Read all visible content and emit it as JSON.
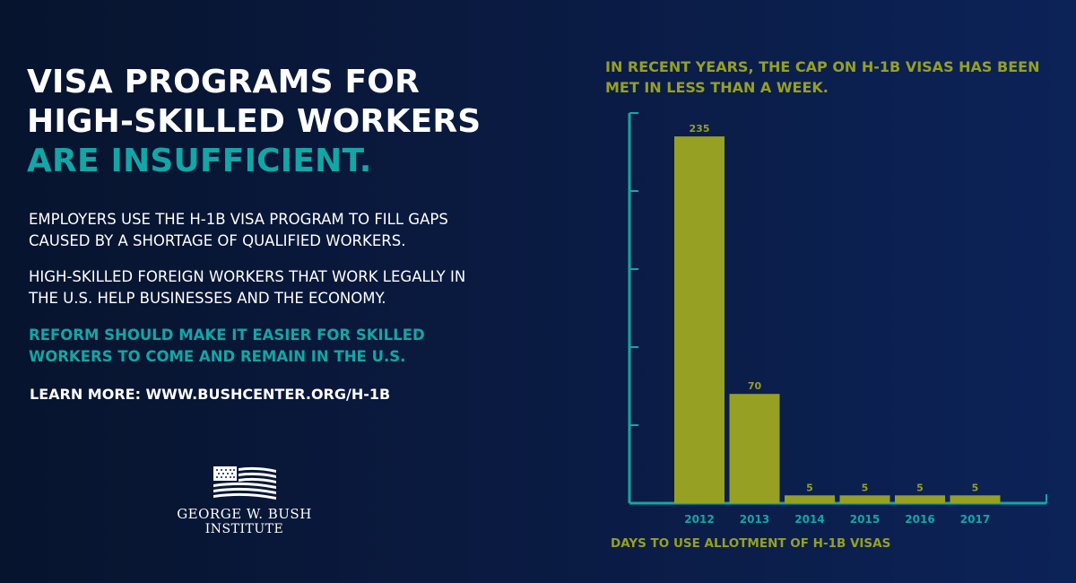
{
  "headline": {
    "line1": "VISA PROGRAMS FOR",
    "line2": "HIGH-SKILLED WORKERS",
    "line3": "ARE INSUFFICIENT."
  },
  "paragraphs": {
    "p1": "EMPLOYERS USE THE H-1B VISA PROGRAM TO FILL GAPS CAUSED BY A SHORTAGE OF QUALIFIED WORKERS.",
    "p2": "HIGH-SKILLED FOREIGN WORKERS THAT WORK LEGALLY IN THE U.S. HELP BUSINESSES AND THE ECONOMY.",
    "p3": "REFORM SHOULD MAKE IT EASIER FOR SKILLED WORKERS TO COME AND REMAIN IN THE U.S."
  },
  "learn_more": "LEARN MORE: WWW.BUSHCENTER.ORG/H-1B",
  "logo": {
    "icon": "flag-icon",
    "line1": "GEORGE W. BUSH",
    "line2": "INSTITUTE"
  },
  "colors": {
    "accent_teal": "#13a6a6",
    "bar_olive": "#96a022",
    "text_white": "#ffffff"
  },
  "chart_data": {
    "type": "bar",
    "title": "IN RECENT YEARS, THE CAP ON H-1B VISAS HAS BEEN MET IN LESS THAN A WEEK.",
    "xlabel": "DAYS TO USE ALLOTMENT OF H-1B VISAS",
    "ylabel": "",
    "categories": [
      "2012",
      "2013",
      "2014",
      "2015",
      "2016",
      "2017"
    ],
    "values": [
      235,
      70,
      5,
      5,
      5,
      5
    ],
    "data_labels": [
      "235",
      "70",
      "5",
      "5",
      "5",
      "5"
    ],
    "ylim": [
      0,
      250
    ],
    "y_ticks": [
      50,
      100,
      150,
      200,
      250
    ],
    "grid": false,
    "legend": "none"
  }
}
